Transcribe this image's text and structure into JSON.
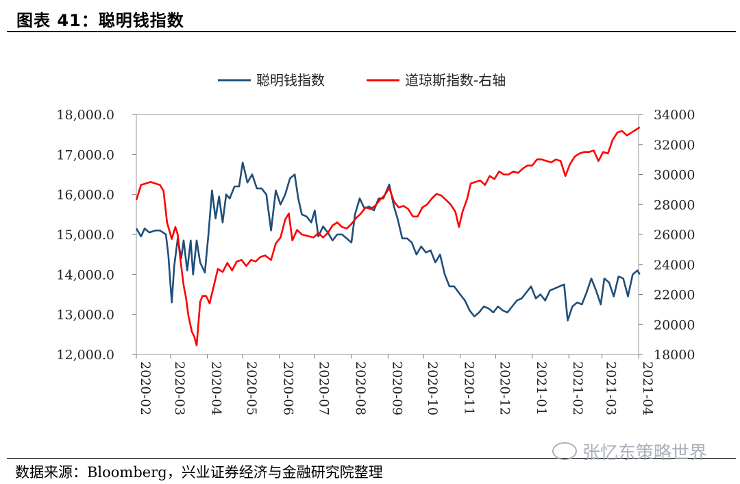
{
  "figure": {
    "title": "图表 41：聪明钱指数",
    "source": "数据来源：Bloomberg，兴业证券经济与金融研究院整理",
    "watermark": "张忆东策略世界",
    "watermark_icon": "wechat-icon"
  },
  "chart_data": {
    "type": "line",
    "x_ticks": [
      "2020-02",
      "2020-03",
      "2020-04",
      "2020-05",
      "2020-06",
      "2020-07",
      "2020-08",
      "2020-09",
      "2020-10",
      "2020-11",
      "2020-12",
      "2021-01",
      "2021-02",
      "2021-03",
      "2021-04"
    ],
    "y_left": {
      "min": 12000,
      "max": 18000,
      "ticks": [
        12000,
        13000,
        14000,
        15000,
        16000,
        17000,
        18000
      ],
      "tick_labels": [
        "12,000.0",
        "13,000.0",
        "14,000.0",
        "15,000.0",
        "16,000.0",
        "17,000.0",
        "18,000.0"
      ]
    },
    "y_right": {
      "min": 18000,
      "max": 34000,
      "ticks": [
        18000,
        20000,
        22000,
        24000,
        26000,
        28000,
        30000,
        32000,
        34000
      ],
      "tick_labels": [
        "18000",
        "20000",
        "22000",
        "24000",
        "26000",
        "28000",
        "30000",
        "32000",
        "34000"
      ]
    },
    "legend_position": "top",
    "series": [
      {
        "name": "聪明钱指数",
        "axis": "left",
        "color": "#1f4e79",
        "points": [
          [
            "2020-02-01",
            15150
          ],
          [
            "2020-02-05",
            14950
          ],
          [
            "2020-02-08",
            15150
          ],
          [
            "2020-02-12",
            15050
          ],
          [
            "2020-02-17",
            15100
          ],
          [
            "2020-02-21",
            15100
          ],
          [
            "2020-02-26",
            15000
          ],
          [
            "2020-02-28",
            14500
          ],
          [
            "2020-03-02",
            13300
          ],
          [
            "2020-03-04",
            14200
          ],
          [
            "2020-03-07",
            14900
          ],
          [
            "2020-03-10",
            14400
          ],
          [
            "2020-03-12",
            14850
          ],
          [
            "2020-03-15",
            14100
          ],
          [
            "2020-03-18",
            14850
          ],
          [
            "2020-03-20",
            14000
          ],
          [
            "2020-03-23",
            14850
          ],
          [
            "2020-03-26",
            14300
          ],
          [
            "2020-03-30",
            14050
          ],
          [
            "2020-04-02",
            15000
          ],
          [
            "2020-04-05",
            16100
          ],
          [
            "2020-04-08",
            15400
          ],
          [
            "2020-04-11",
            15950
          ],
          [
            "2020-04-14",
            15300
          ],
          [
            "2020-04-17",
            16000
          ],
          [
            "2020-04-20",
            15900
          ],
          [
            "2020-04-24",
            16200
          ],
          [
            "2020-04-28",
            16200
          ],
          [
            "2020-05-01",
            16800
          ],
          [
            "2020-05-05",
            16300
          ],
          [
            "2020-05-09",
            16500
          ],
          [
            "2020-05-13",
            16150
          ],
          [
            "2020-05-17",
            16150
          ],
          [
            "2020-05-21",
            16000
          ],
          [
            "2020-05-25",
            15100
          ],
          [
            "2020-05-29",
            16100
          ],
          [
            "2020-06-02",
            15750
          ],
          [
            "2020-06-06",
            16000
          ],
          [
            "2020-06-10",
            16400
          ],
          [
            "2020-06-14",
            16500
          ],
          [
            "2020-06-17",
            15900
          ],
          [
            "2020-06-20",
            15500
          ],
          [
            "2020-06-24",
            15450
          ],
          [
            "2020-06-28",
            15300
          ],
          [
            "2020-07-01",
            15600
          ],
          [
            "2020-07-04",
            14950
          ],
          [
            "2020-07-08",
            15200
          ],
          [
            "2020-07-12",
            15050
          ],
          [
            "2020-07-16",
            14850
          ],
          [
            "2020-07-20",
            15000
          ],
          [
            "2020-07-24",
            15000
          ],
          [
            "2020-07-28",
            14900
          ],
          [
            "2020-08-01",
            14800
          ],
          [
            "2020-08-04",
            15500
          ],
          [
            "2020-08-08",
            15900
          ],
          [
            "2020-08-12",
            15650
          ],
          [
            "2020-08-16",
            15700
          ],
          [
            "2020-08-20",
            15600
          ],
          [
            "2020-08-24",
            15900
          ],
          [
            "2020-08-28",
            15900
          ],
          [
            "2020-09-02",
            16250
          ],
          [
            "2020-09-06",
            15700
          ],
          [
            "2020-09-09",
            15400
          ],
          [
            "2020-09-13",
            14900
          ],
          [
            "2020-09-17",
            14900
          ],
          [
            "2020-09-21",
            14800
          ],
          [
            "2020-09-25",
            14500
          ],
          [
            "2020-09-29",
            14700
          ],
          [
            "2020-10-03",
            14550
          ],
          [
            "2020-10-07",
            14600
          ],
          [
            "2020-10-11",
            14300
          ],
          [
            "2020-10-15",
            14500
          ],
          [
            "2020-10-19",
            14000
          ],
          [
            "2020-10-23",
            13700
          ],
          [
            "2020-10-27",
            13700
          ],
          [
            "2020-11-01",
            13500
          ],
          [
            "2020-11-05",
            13350
          ],
          [
            "2020-11-09",
            13100
          ],
          [
            "2020-11-13",
            12950
          ],
          [
            "2020-11-17",
            13050
          ],
          [
            "2020-11-21",
            13200
          ],
          [
            "2020-11-25",
            13150
          ],
          [
            "2020-11-29",
            13050
          ],
          [
            "2020-12-03",
            13200
          ],
          [
            "2020-12-07",
            13100
          ],
          [
            "2020-12-11",
            13050
          ],
          [
            "2020-12-15",
            13200
          ],
          [
            "2020-12-19",
            13350
          ],
          [
            "2020-12-23",
            13400
          ],
          [
            "2020-12-27",
            13550
          ],
          [
            "2020-12-31",
            13700
          ],
          [
            "2021-01-04",
            13400
          ],
          [
            "2021-01-08",
            13500
          ],
          [
            "2021-01-12",
            13350
          ],
          [
            "2021-01-16",
            13600
          ],
          [
            "2021-01-20",
            13650
          ],
          [
            "2021-01-24",
            13700
          ],
          [
            "2021-01-28",
            13750
          ],
          [
            "2021-01-31",
            12850
          ],
          [
            "2021-02-04",
            13200
          ],
          [
            "2021-02-08",
            13300
          ],
          [
            "2021-02-12",
            13250
          ],
          [
            "2021-02-16",
            13550
          ],
          [
            "2021-02-20",
            13900
          ],
          [
            "2021-02-24",
            13600
          ],
          [
            "2021-02-28",
            13250
          ],
          [
            "2021-03-03",
            13900
          ],
          [
            "2021-03-07",
            13800
          ],
          [
            "2021-03-11",
            13450
          ],
          [
            "2021-03-15",
            13950
          ],
          [
            "2021-03-19",
            13900
          ],
          [
            "2021-03-23",
            13450
          ],
          [
            "2021-03-27",
            14000
          ],
          [
            "2021-03-31",
            14100
          ],
          [
            "2021-04-02",
            14000
          ]
        ]
      },
      {
        "name": "道琼斯指数-右轴",
        "axis": "right",
        "color": "#ff0000",
        "points": [
          [
            "2020-02-01",
            28300
          ],
          [
            "2020-02-05",
            29300
          ],
          [
            "2020-02-09",
            29400
          ],
          [
            "2020-02-13",
            29500
          ],
          [
            "2020-02-17",
            29400
          ],
          [
            "2020-02-21",
            29300
          ],
          [
            "2020-02-24",
            28900
          ],
          [
            "2020-02-27",
            26800
          ],
          [
            "2020-03-02",
            25700
          ],
          [
            "2020-03-05",
            26500
          ],
          [
            "2020-03-07",
            26000
          ],
          [
            "2020-03-09",
            24500
          ],
          [
            "2020-03-12",
            22600
          ],
          [
            "2020-03-14",
            21800
          ],
          [
            "2020-03-16",
            20600
          ],
          [
            "2020-03-19",
            19500
          ],
          [
            "2020-03-21",
            19200
          ],
          [
            "2020-03-23",
            18600
          ],
          [
            "2020-03-26",
            21500
          ],
          [
            "2020-03-28",
            21900
          ],
          [
            "2020-03-31",
            21900
          ],
          [
            "2020-04-03",
            21400
          ],
          [
            "2020-04-06",
            22400
          ],
          [
            "2020-04-10",
            23700
          ],
          [
            "2020-04-14",
            23500
          ],
          [
            "2020-04-18",
            24100
          ],
          [
            "2020-04-22",
            23600
          ],
          [
            "2020-04-26",
            24200
          ],
          [
            "2020-04-30",
            24300
          ],
          [
            "2020-05-04",
            23900
          ],
          [
            "2020-05-08",
            24300
          ],
          [
            "2020-05-12",
            24200
          ],
          [
            "2020-05-16",
            24500
          ],
          [
            "2020-05-20",
            24600
          ],
          [
            "2020-05-25",
            24300
          ],
          [
            "2020-05-29",
            25400
          ],
          [
            "2020-06-02",
            25800
          ],
          [
            "2020-06-06",
            27000
          ],
          [
            "2020-06-09",
            27400
          ],
          [
            "2020-06-12",
            25600
          ],
          [
            "2020-06-16",
            26300
          ],
          [
            "2020-06-20",
            26000
          ],
          [
            "2020-06-25",
            25900
          ],
          [
            "2020-06-30",
            25800
          ],
          [
            "2020-07-04",
            26100
          ],
          [
            "2020-07-08",
            25800
          ],
          [
            "2020-07-12",
            26100
          ],
          [
            "2020-07-16",
            26600
          ],
          [
            "2020-07-20",
            26800
          ],
          [
            "2020-07-24",
            26500
          ],
          [
            "2020-07-28",
            26400
          ],
          [
            "2020-08-01",
            26700
          ],
          [
            "2020-08-05",
            27100
          ],
          [
            "2020-08-09",
            27400
          ],
          [
            "2020-08-13",
            27800
          ],
          [
            "2020-08-17",
            27700
          ],
          [
            "2020-08-21",
            27900
          ],
          [
            "2020-08-25",
            28300
          ],
          [
            "2020-08-29",
            28600
          ],
          [
            "2020-09-02",
            29100
          ],
          [
            "2020-09-06",
            28200
          ],
          [
            "2020-09-10",
            27800
          ],
          [
            "2020-09-14",
            27900
          ],
          [
            "2020-09-18",
            27700
          ],
          [
            "2020-09-22",
            27200
          ],
          [
            "2020-09-26",
            27200
          ],
          [
            "2020-09-30",
            27800
          ],
          [
            "2020-10-04",
            28000
          ],
          [
            "2020-10-08",
            28400
          ],
          [
            "2020-10-12",
            28700
          ],
          [
            "2020-10-16",
            28600
          ],
          [
            "2020-10-20",
            28300
          ],
          [
            "2020-10-24",
            28000
          ],
          [
            "2020-10-28",
            27500
          ],
          [
            "2020-10-31",
            26500
          ],
          [
            "2020-11-03",
            27500
          ],
          [
            "2020-11-07",
            28400
          ],
          [
            "2020-11-10",
            29400
          ],
          [
            "2020-11-14",
            29500
          ],
          [
            "2020-11-18",
            29600
          ],
          [
            "2020-11-22",
            29300
          ],
          [
            "2020-11-26",
            29900
          ],
          [
            "2020-11-30",
            29700
          ],
          [
            "2020-12-04",
            30200
          ],
          [
            "2020-12-08",
            30000
          ],
          [
            "2020-12-12",
            30000
          ],
          [
            "2020-12-16",
            30200
          ],
          [
            "2020-12-20",
            30100
          ],
          [
            "2020-12-24",
            30400
          ],
          [
            "2020-12-28",
            30600
          ],
          [
            "2021-01-01",
            30600
          ],
          [
            "2021-01-05",
            31000
          ],
          [
            "2021-01-09",
            31000
          ],
          [
            "2021-01-13",
            30900
          ],
          [
            "2021-01-17",
            30800
          ],
          [
            "2021-01-21",
            31000
          ],
          [
            "2021-01-25",
            30900
          ],
          [
            "2021-01-29",
            29900
          ],
          [
            "2021-02-02",
            30700
          ],
          [
            "2021-02-06",
            31200
          ],
          [
            "2021-02-10",
            31400
          ],
          [
            "2021-02-14",
            31500
          ],
          [
            "2021-02-18",
            31500
          ],
          [
            "2021-02-22",
            31600
          ],
          [
            "2021-02-26",
            30900
          ],
          [
            "2021-03-02",
            31500
          ],
          [
            "2021-03-06",
            31400
          ],
          [
            "2021-03-10",
            32300
          ],
          [
            "2021-03-14",
            32800
          ],
          [
            "2021-03-18",
            32900
          ],
          [
            "2021-03-22",
            32600
          ],
          [
            "2021-03-26",
            32800
          ],
          [
            "2021-03-30",
            33000
          ],
          [
            "2021-04-02",
            33150
          ]
        ]
      }
    ]
  }
}
